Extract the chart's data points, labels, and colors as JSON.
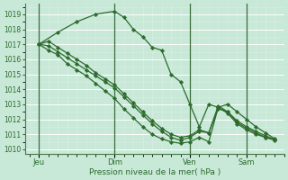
{
  "xlabel": "Pression niveau de la mer( hPa )",
  "background_color": "#c8e8d8",
  "line_color": "#2d6b2d",
  "ylim": [
    1009.7,
    1019.7
  ],
  "yticks": [
    1010,
    1011,
    1012,
    1013,
    1014,
    1015,
    1016,
    1017,
    1018,
    1019
  ],
  "day_labels": [
    "Jeu",
    "Dim",
    "Ven",
    "Sam"
  ],
  "day_positions": [
    1,
    9,
    17,
    23
  ],
  "xlim": [
    -0.5,
    27
  ],
  "grid_major_color": "#ffffff",
  "grid_minor_color": "#daeee4",
  "series": [
    {
      "x": [
        1,
        2,
        3,
        4,
        5,
        6,
        7,
        8,
        9,
        10,
        11,
        12,
        13,
        14,
        15,
        16,
        17,
        18,
        19,
        20,
        21,
        22,
        23,
        24,
        25,
        26
      ],
      "y": [
        1017.0,
        1016.6,
        1016.3,
        1015.7,
        1015.3,
        1014.9,
        1014.4,
        1013.9,
        1013.4,
        1012.7,
        1012.1,
        1011.5,
        1011.0,
        1010.7,
        1010.5,
        1010.4,
        1010.5,
        1010.8,
        1010.5,
        1012.8,
        1012.4,
        1011.7,
        1011.3,
        1011.0,
        1010.8,
        1010.65
      ]
    },
    {
      "x": [
        1,
        2,
        3,
        4,
        5,
        6,
        7,
        8,
        9,
        10,
        11,
        12,
        13,
        14,
        15,
        16,
        17,
        18,
        19,
        20,
        21,
        22,
        23,
        24,
        25,
        26
      ],
      "y": [
        1017.0,
        1016.9,
        1016.5,
        1016.1,
        1015.7,
        1015.3,
        1014.9,
        1014.5,
        1014.1,
        1013.5,
        1012.9,
        1012.3,
        1011.7,
        1011.2,
        1010.8,
        1010.6,
        1010.8,
        1011.2,
        1011.1,
        1012.9,
        1012.5,
        1011.8,
        1011.4,
        1011.1,
        1010.8,
        1010.6
      ]
    },
    {
      "x": [
        1,
        2,
        3,
        4,
        5,
        6,
        7,
        8,
        9,
        10,
        11,
        12,
        13,
        14,
        15,
        16,
        17,
        18,
        19,
        20,
        21,
        22,
        23,
        24,
        25,
        26
      ],
      "y": [
        1017.0,
        1017.2,
        1016.8,
        1016.4,
        1016.0,
        1015.6,
        1015.1,
        1014.7,
        1014.3,
        1013.7,
        1013.1,
        1012.5,
        1011.9,
        1011.4,
        1011.0,
        1010.8,
        1010.9,
        1011.3,
        1011.1,
        1012.7,
        1012.5,
        1011.9,
        1011.5,
        1011.2,
        1010.9,
        1010.65
      ]
    },
    {
      "x": [
        1,
        3,
        5,
        7,
        9,
        10,
        11,
        12,
        13,
        14,
        15,
        16,
        17,
        18,
        19,
        20,
        21,
        22,
        23,
        24,
        25,
        26
      ],
      "y": [
        1017.0,
        1017.8,
        1018.5,
        1019.0,
        1019.2,
        1018.8,
        1018.0,
        1017.5,
        1016.8,
        1016.6,
        1015.0,
        1014.5,
        1013.0,
        1011.5,
        1013.0,
        1012.8,
        1013.0,
        1012.5,
        1012.0,
        1011.5,
        1011.1,
        1010.7
      ]
    }
  ]
}
